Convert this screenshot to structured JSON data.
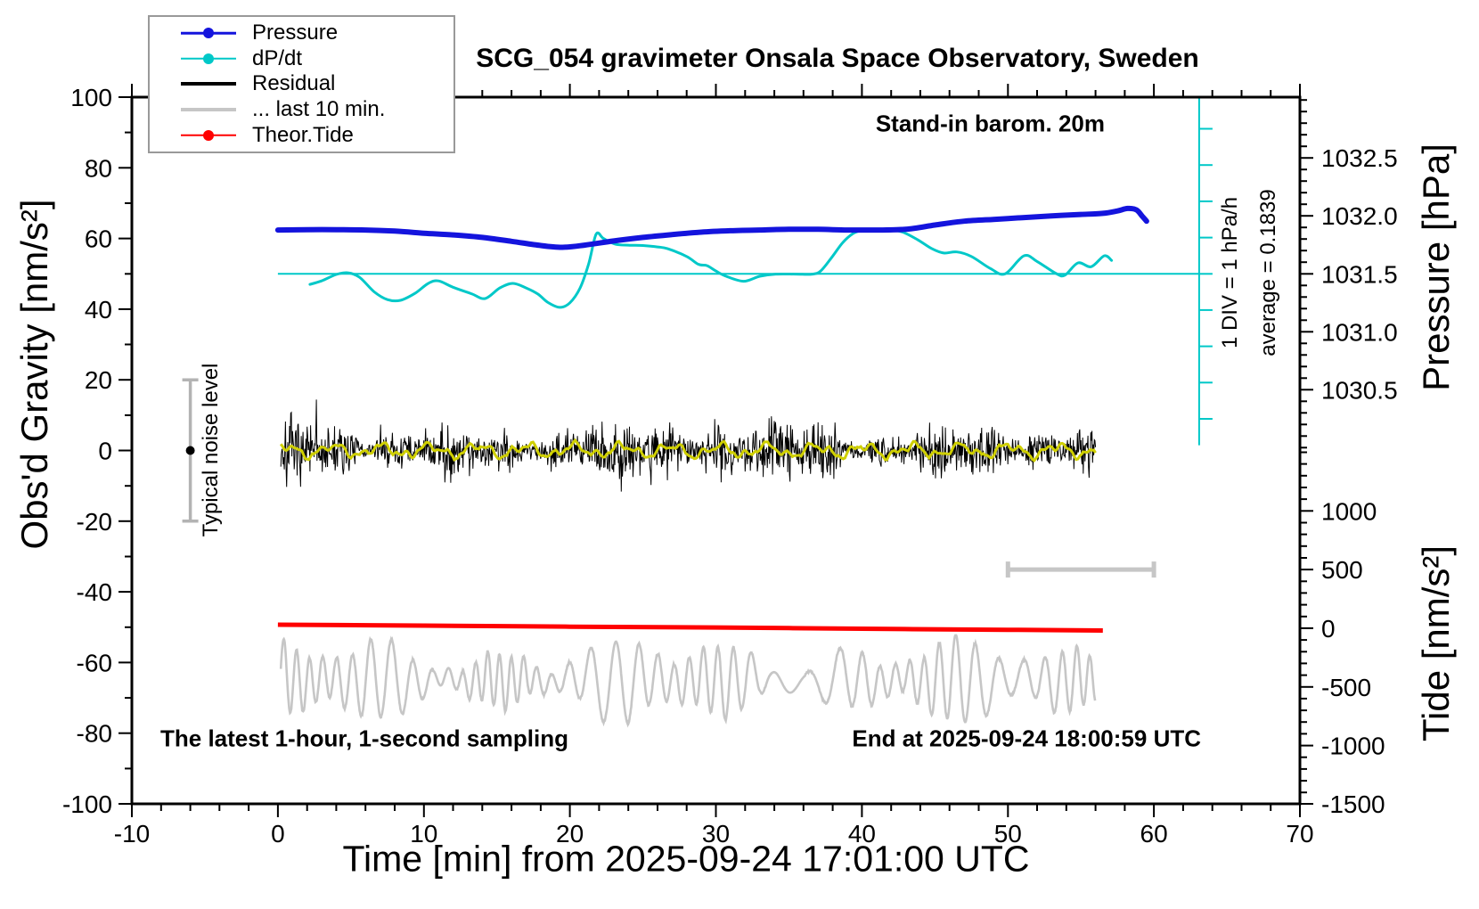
{
  "figure": {
    "title": "SCG_054 gravimeter Onsala Space Observatory, Sweden",
    "background": "#ffffff"
  },
  "annotations": {
    "stand_in_barometer": "Stand-in barom. 20m",
    "div_scale": "1 DIV = 1 hPa/h",
    "average": "average = 0.1839",
    "noise_level": "Typical noise level",
    "sampling_note": "The latest 1-hour, 1-second sampling",
    "end_time": "End at 2025-09-24 18:00:59 UTC"
  },
  "legend": {
    "entries": [
      {
        "label": "Pressure",
        "color": "#1414dd",
        "marker": true,
        "thick": false
      },
      {
        "label": "dP/dt",
        "color": "#00c8c8",
        "marker": true,
        "thick": false
      },
      {
        "label": "Residual",
        "color": "#000000",
        "marker": false,
        "thick": true
      },
      {
        "label": "... last 10 min.",
        "color": "#c6c6c6",
        "marker": false,
        "thick": true
      },
      {
        "label": "Theor.Tide",
        "color": "#ff0000",
        "marker": true,
        "thick": false
      }
    ]
  },
  "colors": {
    "pressure": "#1414dd",
    "dpdt": "#00c8c8",
    "residual": "#000000",
    "residual_smooth": "#cfcf00",
    "last10": "#c6c6c6",
    "tide": "#ff0000",
    "noise_bar": "#b3b3b3",
    "frame": "#000000",
    "legend_border": "#999999"
  },
  "chart_data": {
    "type": "line",
    "title": "SCG_054 gravimeter Onsala Space Observatory, Sweden",
    "xlabel": "Time [min] from 2025-09-24 17:01:00 UTC",
    "ylabel_left": "Obs'd Gravity [nm/s²]",
    "ylabel_right_upper": "Pressure [hPa]",
    "ylabel_right_lower": "Tide [nm/s²]",
    "x_range": [
      -10,
      70
    ],
    "x_major_ticks": [
      -10,
      0,
      10,
      20,
      30,
      40,
      50,
      60,
      70
    ],
    "x_minor_step": 2,
    "y_left_range": [
      -100,
      100
    ],
    "y_left_major_ticks": [
      -100,
      -80,
      -60,
      -40,
      -20,
      0,
      20,
      40,
      60,
      80,
      100
    ],
    "y_left_minor_step": 10,
    "pressure_axis": {
      "unit": "hPa",
      "major_ticks": [
        1032.5,
        1032.0,
        1031.5,
        1031.0,
        1030.5
      ],
      "minor_step": 0.1,
      "gravity_at_1031_5": 50,
      "gravity_per_hPa": 32.8
    },
    "tide_axis": {
      "unit": "nm/s²",
      "major_ticks": [
        1000,
        500,
        0,
        -500,
        -1000,
        -1500
      ],
      "minor_step": 100,
      "gravity_at_0": -50.3,
      "gravity_per_unit": 0.0332
    },
    "series": [
      {
        "name": "Pressure",
        "color": "#1414dd",
        "width": 6,
        "style": "smooth",
        "units": "left-axis gravity equivalent (1031.5 hPa = 50)",
        "points": [
          [
            0,
            62.4
          ],
          [
            2,
            62.5
          ],
          [
            4,
            62.5
          ],
          [
            6,
            62.4
          ],
          [
            8,
            62.1
          ],
          [
            10,
            61.5
          ],
          [
            12,
            61.0
          ],
          [
            14,
            60.3
          ],
          [
            16,
            59.2
          ],
          [
            18,
            58.0
          ],
          [
            19.5,
            57.5
          ],
          [
            21,
            58.1
          ],
          [
            23,
            59.3
          ],
          [
            25,
            60.3
          ],
          [
            27,
            61.1
          ],
          [
            29,
            61.8
          ],
          [
            31,
            62.2
          ],
          [
            33,
            62.4
          ],
          [
            35,
            62.6
          ],
          [
            37,
            62.6
          ],
          [
            39,
            62.4
          ],
          [
            41,
            62.4
          ],
          [
            43,
            62.6
          ],
          [
            45,
            63.8
          ],
          [
            47,
            64.9
          ],
          [
            49,
            65.4
          ],
          [
            51,
            65.9
          ],
          [
            53,
            66.4
          ],
          [
            55,
            66.8
          ],
          [
            56.5,
            67.1
          ],
          [
            57.5,
            67.8
          ],
          [
            58.2,
            68.5
          ],
          [
            58.8,
            68.1
          ],
          [
            59.2,
            66.3
          ],
          [
            59.5,
            64.9
          ]
        ]
      },
      {
        "name": "dP/dt",
        "color": "#00c8c8",
        "width": 3,
        "style": "smooth",
        "zero_line_gravity": 50,
        "units": "1 DIV (10.26 gravity units) = 1 hPa/h",
        "points": [
          [
            2.2,
            47.0
          ],
          [
            3.0,
            48.0
          ],
          [
            4.0,
            49.8
          ],
          [
            4.8,
            50.3
          ],
          [
            5.6,
            49.0
          ],
          [
            6.6,
            44.9
          ],
          [
            7.5,
            42.7
          ],
          [
            8.4,
            42.5
          ],
          [
            9.4,
            44.5
          ],
          [
            10.3,
            47.3
          ],
          [
            11.0,
            48.0
          ],
          [
            12.0,
            46.2
          ],
          [
            13.3,
            44.3
          ],
          [
            14.2,
            43.0
          ],
          [
            15.2,
            46.0
          ],
          [
            16.1,
            47.3
          ],
          [
            17.0,
            46.0
          ],
          [
            17.8,
            44.3
          ],
          [
            18.5,
            41.9
          ],
          [
            19.3,
            40.5
          ],
          [
            20.0,
            41.8
          ],
          [
            20.7,
            46.0
          ],
          [
            21.3,
            53.0
          ],
          [
            21.8,
            61.2
          ],
          [
            22.3,
            60.0
          ],
          [
            23.1,
            58.4
          ],
          [
            24.0,
            58.1
          ],
          [
            25.0,
            58.0
          ],
          [
            26.0,
            57.6
          ],
          [
            26.7,
            57.1
          ],
          [
            28.0,
            54.9
          ],
          [
            28.8,
            52.7
          ],
          [
            29.4,
            52.3
          ],
          [
            30.0,
            50.8
          ],
          [
            30.7,
            49.3
          ],
          [
            31.9,
            47.9
          ],
          [
            33.0,
            49.3
          ],
          [
            34.1,
            49.9
          ],
          [
            35.5,
            49.9
          ],
          [
            36.6,
            49.9
          ],
          [
            37.2,
            50.9
          ],
          [
            38.0,
            55.0
          ],
          [
            38.7,
            58.9
          ],
          [
            39.4,
            61.4
          ],
          [
            40.0,
            62.3
          ],
          [
            41.0,
            62.6
          ],
          [
            42.0,
            62.4
          ],
          [
            42.8,
            61.8
          ],
          [
            43.8,
            59.7
          ],
          [
            44.8,
            57.1
          ],
          [
            45.6,
            55.9
          ],
          [
            46.5,
            56.2
          ],
          [
            47.5,
            54.9
          ],
          [
            48.8,
            51.5
          ],
          [
            49.8,
            50.0
          ],
          [
            51.1,
            55.1
          ],
          [
            52.0,
            53.5
          ],
          [
            53.3,
            50.1
          ],
          [
            53.9,
            49.6
          ],
          [
            54.8,
            53.1
          ],
          [
            55.7,
            52.0
          ],
          [
            56.6,
            55.1
          ],
          [
            57.1,
            53.8
          ]
        ]
      },
      {
        "name": "Residual",
        "color": "#000000",
        "width": 1,
        "style": "noise",
        "center": 0,
        "x_span": [
          0.2,
          56
        ],
        "typical_amplitude": 8,
        "max_amplitude": 19,
        "seed": 7
      },
      {
        "name": "Residual smoothed",
        "color": "#cfcf00",
        "width": 3,
        "style": "wiggle",
        "center": 0,
        "x_span": [
          0.2,
          56
        ],
        "amplitude": 2,
        "seed": 21
      },
      {
        "name": "... last 10 min.",
        "color": "#c6c6c6",
        "width": 2.6,
        "style": "oscillation",
        "center": -65,
        "x_span": [
          0.2,
          56
        ],
        "amplitude_range": [
          3,
          12
        ],
        "seed": 13
      },
      {
        "name": "Theor.Tide",
        "color": "#ff0000",
        "width": 5,
        "style": "smooth",
        "units": "right tide axis ~ +15 to -20 nm/s²",
        "points": [
          [
            0,
            -49.3
          ],
          [
            10,
            -49.55
          ],
          [
            20,
            -49.85
          ],
          [
            30,
            -50.1
          ],
          [
            40,
            -50.45
          ],
          [
            50,
            -50.75
          ],
          [
            56.5,
            -50.95
          ]
        ]
      }
    ],
    "reference_elements": {
      "dpdt_zero_line": {
        "gravity": 50,
        "x_from": 0,
        "x_to": 63.1
      },
      "div_scale_bar": {
        "x": 63.1,
        "gravity_from": 1.5,
        "gravity_to": 100,
        "div_gravity": 10.26
      },
      "last10_scale_bar": {
        "x_from": 50,
        "x_to": 60,
        "gravity": -33.7
      },
      "noise_error_bar": {
        "x": -6,
        "gravity_center": 0,
        "gravity_half_span": 20
      }
    },
    "grid": false,
    "legend_position": "top-left"
  }
}
